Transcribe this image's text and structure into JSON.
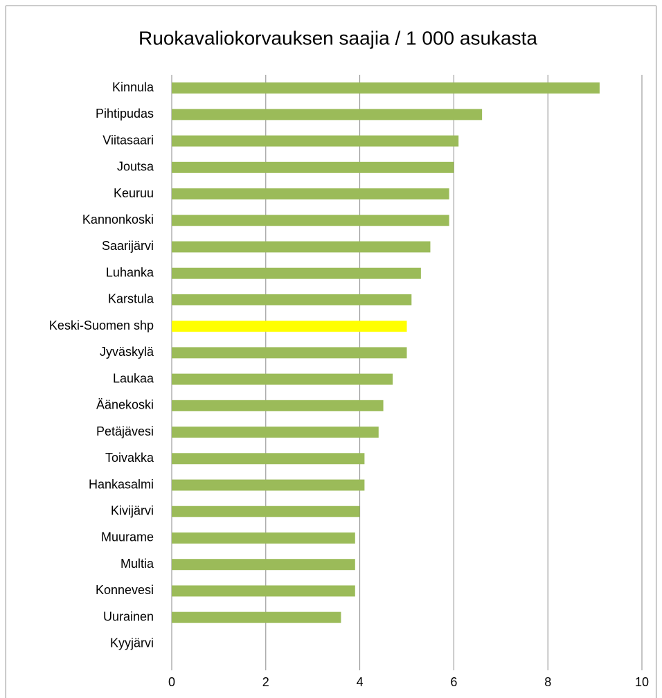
{
  "chart_data": {
    "type": "bar",
    "orientation": "horizontal",
    "title": "Ruokavaliokorvauksen saajia / 1 000 asukasta",
    "categories": [
      "Kinnula",
      "Pihtipudas",
      "Viitasaari",
      "Joutsa",
      "Keuruu",
      "Kannonkoski",
      "Saarijärvi",
      "Luhanka",
      "Karstula",
      "Keski-Suomen shp",
      "Jyväskylä",
      "Laukaa",
      "Äänekoski",
      "Petäjävesi",
      "Toivakka",
      "Hankasalmi",
      "Kivijärvi",
      "Muurame",
      "Multia",
      "Konnevesi",
      "Uurainen",
      "Kyyjärvi"
    ],
    "values": [
      9.1,
      6.6,
      6.1,
      6.0,
      5.9,
      5.9,
      5.5,
      5.3,
      5.1,
      5.0,
      5.0,
      4.7,
      4.5,
      4.4,
      4.1,
      4.1,
      4.0,
      3.9,
      3.9,
      3.9,
      3.6,
      null
    ],
    "colors": [
      "#9bbb59",
      "#9bbb59",
      "#9bbb59",
      "#9bbb59",
      "#9bbb59",
      "#9bbb59",
      "#9bbb59",
      "#9bbb59",
      "#9bbb59",
      "#ffff00",
      "#9bbb59",
      "#9bbb59",
      "#9bbb59",
      "#9bbb59",
      "#9bbb59",
      "#9bbb59",
      "#9bbb59",
      "#9bbb59",
      "#9bbb59",
      "#9bbb59",
      "#9bbb59",
      "#9bbb59"
    ],
    "xlim": [
      0,
      10
    ],
    "xticks": [
      0,
      2,
      4,
      6,
      8,
      10
    ],
    "grid": true
  }
}
